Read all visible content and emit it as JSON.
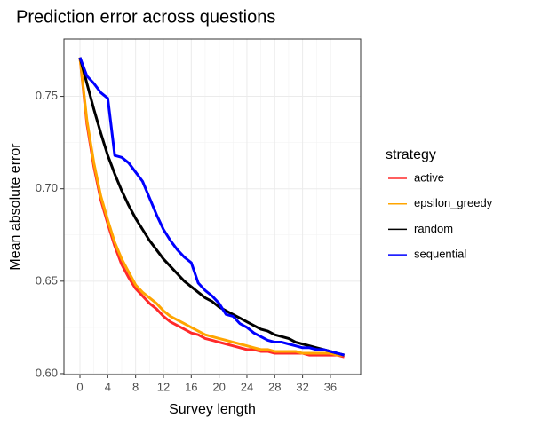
{
  "chart_data": {
    "type": "line",
    "title": "Prediction error across questions",
    "x_label": "Survey length",
    "y_label": "Mean absolute error",
    "legend_title": "strategy",
    "x": [
      0,
      1,
      2,
      3,
      4,
      5,
      6,
      7,
      8,
      9,
      10,
      11,
      12,
      13,
      14,
      15,
      16,
      17,
      18,
      19,
      20,
      21,
      22,
      23,
      24,
      25,
      26,
      27,
      28,
      29,
      30,
      31,
      32,
      33,
      34,
      35,
      36,
      37,
      38
    ],
    "series": [
      {
        "name": "active",
        "color": "#ff2a2a",
        "values": [
          0.771,
          0.735,
          0.712,
          0.694,
          0.681,
          0.669,
          0.659,
          0.652,
          0.646,
          0.642,
          0.638,
          0.635,
          0.631,
          0.628,
          0.626,
          0.624,
          0.622,
          0.621,
          0.619,
          0.618,
          0.617,
          0.616,
          0.615,
          0.614,
          0.613,
          0.613,
          0.612,
          0.612,
          0.611,
          0.611,
          0.611,
          0.611,
          0.611,
          0.61,
          0.61,
          0.61,
          0.61,
          0.61,
          0.609
        ]
      },
      {
        "name": "epsilon_greedy",
        "color": "#ffa500",
        "values": [
          0.771,
          0.737,
          0.714,
          0.696,
          0.683,
          0.671,
          0.662,
          0.655,
          0.648,
          0.644,
          0.641,
          0.638,
          0.634,
          0.631,
          0.629,
          0.627,
          0.625,
          0.623,
          0.621,
          0.62,
          0.619,
          0.618,
          0.617,
          0.616,
          0.615,
          0.614,
          0.613,
          0.613,
          0.612,
          0.612,
          0.612,
          0.612,
          0.611,
          0.611,
          0.611,
          0.611,
          0.611,
          0.61,
          0.61
        ]
      },
      {
        "name": "random",
        "color": "#000000",
        "values": [
          0.771,
          0.757,
          0.743,
          0.73,
          0.718,
          0.708,
          0.699,
          0.691,
          0.684,
          0.678,
          0.672,
          0.667,
          0.662,
          0.658,
          0.654,
          0.65,
          0.647,
          0.644,
          0.641,
          0.639,
          0.636,
          0.634,
          0.632,
          0.63,
          0.628,
          0.626,
          0.624,
          0.623,
          0.621,
          0.62,
          0.619,
          0.617,
          0.616,
          0.615,
          0.614,
          0.613,
          0.612,
          0.611,
          0.61
        ]
      },
      {
        "name": "sequential",
        "color": "#0000ff",
        "values": [
          0.771,
          0.761,
          0.757,
          0.752,
          0.749,
          0.718,
          0.717,
          0.714,
          0.709,
          0.704,
          0.695,
          0.686,
          0.678,
          0.672,
          0.667,
          0.663,
          0.66,
          0.649,
          0.645,
          0.642,
          0.638,
          0.632,
          0.631,
          0.627,
          0.625,
          0.622,
          0.62,
          0.618,
          0.617,
          0.617,
          0.616,
          0.615,
          0.614,
          0.614,
          0.613,
          0.613,
          0.612,
          0.611,
          0.61
        ]
      }
    ],
    "xlim": [
      -2.3,
      40.35
    ],
    "ylim": [
      0.5995,
      0.781
    ],
    "xticks": [
      0,
      4,
      8,
      12,
      16,
      20,
      24,
      28,
      32,
      36
    ],
    "yticks": [
      {
        "value": 0.6,
        "label": "0.60"
      },
      0.65,
      {
        "value": 0.7,
        "label": "0.70"
      },
      0.75
    ],
    "grid": true
  }
}
